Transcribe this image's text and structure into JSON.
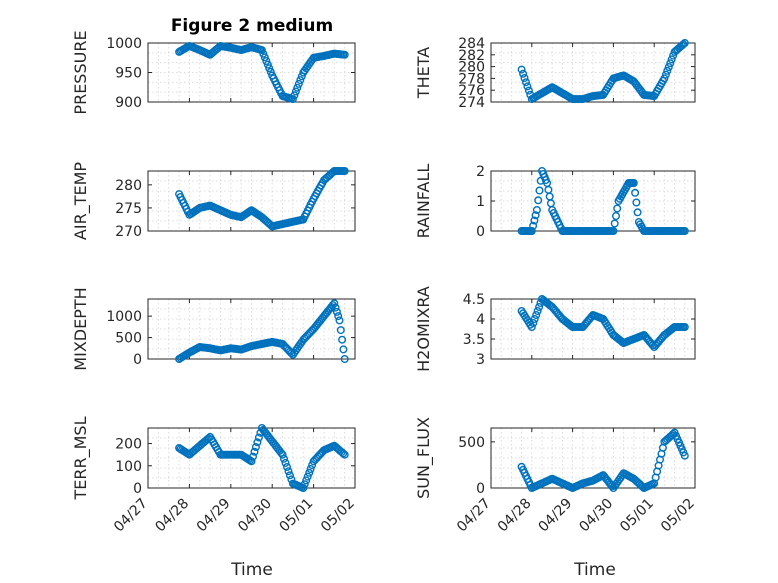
{
  "figure": {
    "title": "Figure 2 medium",
    "time_label": "Time",
    "date_ticks": [
      "04/27",
      "04/28",
      "04/29",
      "04/30",
      "05/01",
      "05/02"
    ],
    "marker_color": "#0072bd"
  },
  "chart_data": [
    {
      "type": "scatter",
      "id": "pressure",
      "ylabel": "PRESSURE",
      "ylim": [
        900,
        1000
      ],
      "yticks": [
        900,
        950,
        1000
      ],
      "xlim": [
        "04/27",
        "05/02"
      ],
      "x": [
        "04/27 18:00",
        "04/28 00:00",
        "04/28 06:00",
        "04/28 12:00",
        "04/28 18:00",
        "04/29 00:00",
        "04/29 06:00",
        "04/29 12:00",
        "04/29 18:00",
        "04/30 00:00",
        "04/30 06:00",
        "04/30 12:00",
        "04/30 18:00",
        "05/01 00:00",
        "05/01 06:00",
        "05/01 12:00",
        "05/01 18:00"
      ],
      "y": [
        985,
        995,
        988,
        980,
        995,
        992,
        988,
        993,
        988,
        945,
        910,
        905,
        950,
        975,
        978,
        982,
        980
      ]
    },
    {
      "type": "scatter",
      "id": "theta",
      "ylabel": "THETA",
      "ylim": [
        274,
        284
      ],
      "yticks": [
        274,
        276,
        278,
        280,
        282,
        284
      ],
      "xlim": [
        "04/27",
        "05/02"
      ],
      "x": [
        "04/27 18:00",
        "04/28 00:00",
        "04/28 06:00",
        "04/28 12:00",
        "04/28 18:00",
        "04/29 00:00",
        "04/29 06:00",
        "04/29 12:00",
        "04/29 18:00",
        "04/30 00:00",
        "04/30 06:00",
        "04/30 12:00",
        "04/30 18:00",
        "05/01 00:00",
        "05/01 06:00",
        "05/01 12:00",
        "05/01 18:00"
      ],
      "y": [
        279.5,
        274.5,
        275.5,
        276.5,
        275.5,
        274.5,
        274.5,
        275,
        275.2,
        278,
        278.5,
        277.5,
        275.2,
        275,
        278,
        282.5,
        284
      ]
    },
    {
      "type": "scatter",
      "id": "air_temp",
      "ylabel": "AIR_TEMP",
      "ylim": [
        270,
        283
      ],
      "yticks": [
        270,
        275,
        280
      ],
      "xlim": [
        "04/27",
        "05/02"
      ],
      "x": [
        "04/27 18:00",
        "04/28 00:00",
        "04/28 06:00",
        "04/28 12:00",
        "04/28 18:00",
        "04/29 00:00",
        "04/29 06:00",
        "04/29 12:00",
        "04/29 18:00",
        "04/30 00:00",
        "04/30 06:00",
        "04/30 12:00",
        "04/30 18:00",
        "05/01 00:00",
        "05/01 06:00",
        "05/01 12:00",
        "05/01 18:00"
      ],
      "y": [
        278,
        273.5,
        275,
        275.5,
        274.5,
        273.5,
        273,
        274.5,
        273,
        271,
        271.5,
        272,
        272.5,
        277,
        281,
        283,
        283
      ]
    },
    {
      "type": "scatter",
      "id": "rainfall",
      "ylabel": "RAINFALL",
      "ylim": [
        0,
        2
      ],
      "yticks": [
        0,
        1,
        2
      ],
      "xlim": [
        "04/27",
        "05/02"
      ],
      "x": [
        "04/27 18:00",
        "04/28 00:00",
        "04/28 03:00",
        "04/28 06:00",
        "04/28 09:00",
        "04/28 12:00",
        "04/28 18:00",
        "04/29 00:00",
        "04/29 12:00",
        "04/30 00:00",
        "04/30 03:00",
        "04/30 06:00",
        "04/30 09:00",
        "04/30 12:00",
        "04/30 15:00",
        "04/30 18:00",
        "05/01 00:00",
        "05/01 12:00",
        "05/01 18:00"
      ],
      "y": [
        0,
        0,
        0.7,
        2,
        1.6,
        0.7,
        0,
        0,
        0,
        0,
        1,
        1.3,
        1.6,
        1.6,
        0.3,
        0,
        0,
        0,
        0
      ]
    },
    {
      "type": "scatter",
      "id": "mixdepth",
      "ylabel": "MIXDEPTH",
      "ylim": [
        0,
        1400
      ],
      "yticks": [
        0,
        500,
        1000
      ],
      "xlim": [
        "04/27",
        "05/02"
      ],
      "x": [
        "04/27 18:00",
        "04/28 00:00",
        "04/28 06:00",
        "04/28 12:00",
        "04/28 18:00",
        "04/29 00:00",
        "04/29 06:00",
        "04/29 12:00",
        "04/29 18:00",
        "04/30 00:00",
        "04/30 06:00",
        "04/30 12:00",
        "04/30 18:00",
        "05/01 00:00",
        "05/01 06:00",
        "05/01 12:00",
        "05/01 15:00",
        "05/01 18:00"
      ],
      "y": [
        0,
        150,
        280,
        250,
        200,
        250,
        220,
        300,
        350,
        400,
        350,
        100,
        450,
        700,
        1000,
        1300,
        900,
        0
      ]
    },
    {
      "type": "scatter",
      "id": "h2omixra",
      "ylabel": "H2OMIXRA",
      "ylim": [
        3,
        4.5
      ],
      "yticks": [
        3,
        3.5,
        4,
        4.5
      ],
      "xlim": [
        "04/27",
        "05/02"
      ],
      "x": [
        "04/27 18:00",
        "04/28 00:00",
        "04/28 06:00",
        "04/28 12:00",
        "04/28 18:00",
        "04/29 00:00",
        "04/29 06:00",
        "04/29 12:00",
        "04/29 18:00",
        "04/30 00:00",
        "04/30 06:00",
        "04/30 12:00",
        "04/30 18:00",
        "05/01 00:00",
        "05/01 06:00",
        "05/01 12:00",
        "05/01 18:00"
      ],
      "y": [
        4.2,
        3.8,
        4.5,
        4.3,
        4.0,
        3.8,
        3.8,
        4.1,
        4.0,
        3.6,
        3.4,
        3.5,
        3.6,
        3.3,
        3.6,
        3.8,
        3.8
      ]
    },
    {
      "type": "scatter",
      "id": "terr_msl",
      "ylabel": "TERR_MSL",
      "ylim": [
        0,
        270
      ],
      "yticks": [
        0,
        100,
        200
      ],
      "xlim": [
        "04/27",
        "05/02"
      ],
      "x": [
        "04/27 18:00",
        "04/28 00:00",
        "04/28 06:00",
        "04/28 12:00",
        "04/28 18:00",
        "04/29 00:00",
        "04/29 06:00",
        "04/29 12:00",
        "04/29 18:00",
        "04/30 00:00",
        "04/30 06:00",
        "04/30 12:00",
        "04/30 18:00",
        "05/01 00:00",
        "05/01 06:00",
        "05/01 12:00",
        "05/01 18:00"
      ],
      "y": [
        180,
        150,
        190,
        230,
        150,
        150,
        150,
        120,
        270,
        210,
        150,
        20,
        0,
        120,
        170,
        190,
        150
      ]
    },
    {
      "type": "scatter",
      "id": "sun_flux",
      "ylabel": "SUN_FLUX",
      "ylim": [
        0,
        650
      ],
      "yticks": [
        0,
        500
      ],
      "xlim": [
        "04/27",
        "05/02"
      ],
      "x": [
        "04/27 18:00",
        "04/28 00:00",
        "04/28 06:00",
        "04/28 12:00",
        "04/28 18:00",
        "04/29 00:00",
        "04/29 06:00",
        "04/29 12:00",
        "04/29 18:00",
        "04/30 00:00",
        "04/30 06:00",
        "04/30 12:00",
        "04/30 18:00",
        "05/01 00:00",
        "05/01 06:00",
        "05/01 12:00",
        "05/01 18:00"
      ],
      "y": [
        230,
        0,
        50,
        100,
        50,
        0,
        50,
        80,
        140,
        0,
        160,
        100,
        0,
        50,
        500,
        600,
        350
      ]
    }
  ]
}
